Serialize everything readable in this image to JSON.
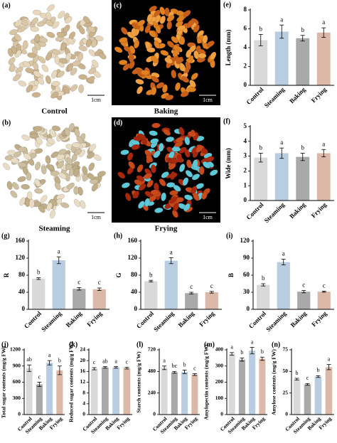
{
  "panels": [
    {
      "label": "(a)",
      "caption": "Control",
      "scale": "1cm"
    },
    {
      "label": "(c)",
      "caption": "Baking",
      "scale": "1cm"
    },
    {
      "label": "(b)",
      "caption": "Steaming",
      "scale": "1cm"
    },
    {
      "label": "(d)",
      "caption": "Frying",
      "scale": "1cm"
    }
  ],
  "chart_data": [
    {
      "type": "bar",
      "panel_label": "(e)",
      "ylabel": "Length (mm)",
      "categories": [
        "Control",
        "Steaming",
        "Baking",
        "Frying"
      ],
      "values": [
        4.8,
        5.7,
        5.0,
        5.6
      ],
      "errors": [
        0.6,
        0.7,
        0.3,
        0.5
      ],
      "significance": [
        "b",
        "a",
        "b",
        "a"
      ],
      "colors": [
        "#d9d9d9",
        "#b9cde2",
        "#a9a9a9",
        "#dcb8a8"
      ],
      "ylim": [
        0,
        8
      ],
      "yticks": [
        0,
        2,
        4,
        6,
        8
      ]
    },
    {
      "type": "bar",
      "panel_label": "(f)",
      "ylabel": "Wide (mm)",
      "categories": [
        "Control",
        "Steaming",
        "Baking",
        "Frying"
      ],
      "values": [
        2.9,
        3.2,
        2.95,
        3.2
      ],
      "errors": [
        0.3,
        0.35,
        0.25,
        0.25
      ],
      "significance": [
        "b",
        "a",
        "b",
        "a"
      ],
      "colors": [
        "#d9d9d9",
        "#b9cde2",
        "#a9a9a9",
        "#dcb8a8"
      ],
      "ylim": [
        0,
        5
      ],
      "yticks": [
        0,
        1,
        2,
        3,
        4,
        5
      ]
    },
    {
      "type": "bar",
      "panel_label": "(g)",
      "ylabel": "R",
      "categories": [
        "Control",
        "Steaming",
        "Baking",
        "Frying"
      ],
      "values": [
        72,
        115,
        48,
        47
      ],
      "errors": [
        2,
        8,
        3,
        3
      ],
      "significance": [
        "b",
        "a",
        "c",
        "c"
      ],
      "colors": [
        "#d9d9d9",
        "#b9cde2",
        "#a9a9a9",
        "#dcb8a8"
      ],
      "ylim": [
        0,
        160
      ],
      "yticks": [
        0,
        40,
        80,
        120,
        160
      ]
    },
    {
      "type": "bar",
      "panel_label": "(h)",
      "ylabel": "G",
      "categories": [
        "Control",
        "Steaming",
        "Baking",
        "Frying"
      ],
      "values": [
        66,
        114,
        38,
        40
      ],
      "errors": [
        2,
        7,
        2,
        2
      ],
      "significance": [
        "b",
        "a",
        "c",
        "c"
      ],
      "colors": [
        "#d9d9d9",
        "#b9cde2",
        "#a9a9a9",
        "#dcb8a8"
      ],
      "ylim": [
        0,
        160
      ],
      "yticks": [
        0,
        40,
        80,
        120,
        160
      ]
    },
    {
      "type": "bar",
      "panel_label": "(i)",
      "ylabel": "B",
      "categories": [
        "Control",
        "Steaming",
        "Baking",
        "Frying"
      ],
      "values": [
        43,
        83,
        31,
        31
      ],
      "errors": [
        2,
        5,
        2,
        1
      ],
      "significance": [
        "b",
        "a",
        "c",
        "c"
      ],
      "colors": [
        "#d9d9d9",
        "#b9cde2",
        "#a9a9a9",
        "#dcb8a8"
      ],
      "ylim": [
        0,
        120
      ],
      "yticks": [
        0,
        30,
        60,
        90,
        120
      ]
    },
    {
      "type": "bar",
      "panel_label": "(j)",
      "ylabel": "Total sugar contents (mg/g FW)",
      "categories": [
        "Control",
        "Steaming",
        "Baking",
        "Frying"
      ],
      "values": [
        860,
        560,
        960,
        820
      ],
      "errors": [
        60,
        40,
        40,
        80
      ],
      "significance": [
        "ab",
        "c",
        "a",
        "b"
      ],
      "colors": [
        "#d9d9d9",
        "#a9a9a9",
        "#b9cde2",
        "#dcb8a8"
      ],
      "ylim": [
        0,
        1200
      ],
      "yticks": [
        0,
        300,
        600,
        900,
        1200
      ]
    },
    {
      "type": "bar",
      "panel_label": "(k)",
      "ylabel": "Reduced sugar contents (mg/g FW)",
      "categories": [
        "Control",
        "Steaming",
        "Baking",
        "Frying"
      ],
      "values": [
        17,
        17.5,
        17.5,
        17.2
      ],
      "errors": [
        0.4,
        0.3,
        0.3,
        0.3
      ],
      "significance": [
        "c",
        "ab",
        "a",
        "c"
      ],
      "colors": [
        "#d9d9d9",
        "#a9a9a9",
        "#b9cde2",
        "#dcb8a8"
      ],
      "ylim": [
        0,
        24
      ],
      "yticks": [
        0,
        4,
        8,
        12,
        16,
        20,
        24
      ]
    },
    {
      "type": "bar",
      "panel_label": "(l)",
      "ylabel": "Starch contents (mg/g FW)",
      "categories": [
        "Control",
        "Steaming",
        "Baking",
        "Frying"
      ],
      "values": [
        520,
        470,
        475,
        445
      ],
      "errors": [
        20,
        10,
        20,
        10
      ],
      "significance": [
        "a",
        "bc",
        "b",
        "c"
      ],
      "colors": [
        "#d9d9d9",
        "#a9a9a9",
        "#b9cde2",
        "#dcb8a8"
      ],
      "ylim": [
        0,
        720
      ],
      "yticks": [
        0,
        240,
        480,
        720
      ]
    },
    {
      "type": "bar",
      "panel_label": "(m)",
      "ylabel": "Amylopectin contents (mg/g FW)",
      "categories": [
        "Control",
        "Steaming",
        "Baking",
        "Frying"
      ],
      "values": [
        375,
        340,
        395,
        345
      ],
      "errors": [
        8,
        10,
        20,
        10
      ],
      "significance": [
        "a",
        "b",
        "a",
        "b"
      ],
      "colors": [
        "#d9d9d9",
        "#a9a9a9",
        "#b9cde2",
        "#dcb8a8"
      ],
      "ylim": [
        0,
        400
      ],
      "yticks": [
        0,
        100,
        200,
        300,
        400
      ]
    },
    {
      "type": "bar",
      "panel_label": "(n)",
      "ylabel": "Amylose contents (mg/g FW)",
      "categories": [
        "Control",
        "Steaming",
        "Baking",
        "Frying"
      ],
      "values": [
        41,
        35,
        44,
        55
      ],
      "errors": [
        1,
        1,
        1,
        3
      ],
      "significance": [
        "b",
        "c",
        "b",
        "a"
      ],
      "colors": [
        "#d9d9d9",
        "#a9a9a9",
        "#b9cde2",
        "#dcb8a8"
      ],
      "ylim": [
        0,
        75
      ],
      "yticks": [
        0,
        25,
        50,
        75
      ]
    }
  ]
}
